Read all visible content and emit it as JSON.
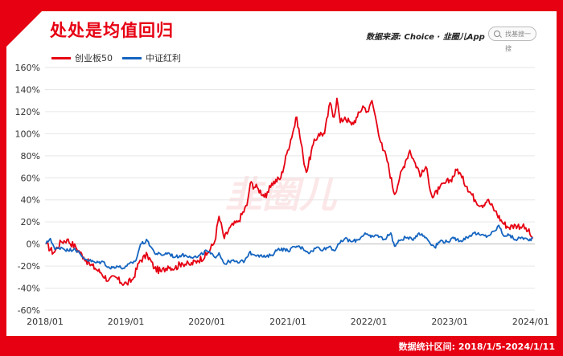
{
  "header": {
    "title": "处处是均值回归",
    "source": "数据来源: Choice · 韭圈儿App",
    "search_placeholder": "找基搜一搜"
  },
  "footer": {
    "date_range": "数据统计区间: 2018/1/5-2024/1/11"
  },
  "watermark": "韭圈儿",
  "colors": {
    "cyb": "#e60012",
    "zzhl": "#1565c0",
    "accent": "#e60012"
  },
  "chart_data": {
    "type": "line",
    "title": "处处是均值回归",
    "xlabel": "",
    "ylabel": "",
    "ylim": [
      -60,
      160
    ],
    "yticks": [
      -60,
      -40,
      -20,
      0,
      20,
      40,
      60,
      80,
      100,
      120,
      140,
      160
    ],
    "ytick_labels": [
      "-60%",
      "-40%",
      "-20%",
      "0%",
      "20%",
      "40%",
      "60%",
      "80%",
      "100%",
      "120%",
      "140%",
      "160%"
    ],
    "xlim": [
      "2018-01-01",
      "2024-01-20"
    ],
    "xtick_labels": [
      "2018/01",
      "2019/01",
      "2020/01",
      "2021/01",
      "2022/01",
      "2023/01",
      "2024/01"
    ],
    "xtick_values": [
      "2018-01-01",
      "2019-01-01",
      "2020-01-01",
      "2021-01-01",
      "2022-01-01",
      "2023-01-01",
      "2024-01-01"
    ],
    "grid": "horizontal",
    "legend": "top-left",
    "series": [
      {
        "name": "创业板50",
        "color": "#e60012",
        "points": [
          [
            "2018-01-05",
            0
          ],
          [
            "2018-02-08",
            -8
          ],
          [
            "2018-03-15",
            2
          ],
          [
            "2018-04-10",
            4
          ],
          [
            "2018-05-20",
            -3
          ],
          [
            "2018-06-25",
            -12
          ],
          [
            "2018-07-20",
            -18
          ],
          [
            "2018-08-15",
            -22
          ],
          [
            "2018-09-10",
            -26
          ],
          [
            "2018-10-15",
            -33
          ],
          [
            "2018-11-15",
            -30
          ],
          [
            "2018-12-10",
            -35
          ],
          [
            "2019-01-05",
            -36
          ],
          [
            "2019-02-01",
            -32
          ],
          [
            "2019-03-05",
            -15
          ],
          [
            "2019-04-08",
            -10
          ],
          [
            "2019-05-10",
            -22
          ],
          [
            "2019-06-10",
            -25
          ],
          [
            "2019-07-10",
            -20
          ],
          [
            "2019-08-10",
            -22
          ],
          [
            "2019-09-10",
            -17
          ],
          [
            "2019-10-15",
            -19
          ],
          [
            "2019-11-20",
            -15
          ],
          [
            "2019-12-31",
            -10
          ],
          [
            "2020-02-05",
            2
          ],
          [
            "2020-02-25",
            25
          ],
          [
            "2020-03-20",
            5
          ],
          [
            "2020-04-15",
            15
          ],
          [
            "2020-05-20",
            20
          ],
          [
            "2020-06-30",
            35
          ],
          [
            "2020-07-15",
            55
          ],
          [
            "2020-08-20",
            50
          ],
          [
            "2020-09-25",
            42
          ],
          [
            "2020-10-20",
            55
          ],
          [
            "2020-11-30",
            60
          ],
          [
            "2020-12-31",
            85
          ],
          [
            "2021-02-10",
            115
          ],
          [
            "2021-03-10",
            80
          ],
          [
            "2021-03-25",
            65
          ],
          [
            "2021-04-25",
            90
          ],
          [
            "2021-05-20",
            100
          ],
          [
            "2021-06-15",
            100
          ],
          [
            "2021-07-10",
            128
          ],
          [
            "2021-07-28",
            115
          ],
          [
            "2021-08-10",
            132
          ],
          [
            "2021-08-25",
            110
          ],
          [
            "2021-09-15",
            115
          ],
          [
            "2021-10-15",
            108
          ],
          [
            "2021-11-10",
            115
          ],
          [
            "2021-12-05",
            125
          ],
          [
            "2021-12-30",
            120
          ],
          [
            "2022-01-15",
            130
          ],
          [
            "2022-02-05",
            110
          ],
          [
            "2022-03-05",
            85
          ],
          [
            "2022-03-20",
            80
          ],
          [
            "2022-04-27",
            45
          ],
          [
            "2022-05-20",
            60
          ],
          [
            "2022-06-15",
            75
          ],
          [
            "2022-07-05",
            85
          ],
          [
            "2022-07-25",
            75
          ],
          [
            "2022-08-25",
            62
          ],
          [
            "2022-09-15",
            70
          ],
          [
            "2022-10-15",
            42
          ],
          [
            "2022-11-15",
            50
          ],
          [
            "2022-12-10",
            55
          ],
          [
            "2023-01-05",
            58
          ],
          [
            "2023-02-05",
            68
          ],
          [
            "2023-02-25",
            60
          ],
          [
            "2023-03-20",
            52
          ],
          [
            "2023-04-25",
            40
          ],
          [
            "2023-05-25",
            35
          ],
          [
            "2023-06-20",
            40
          ],
          [
            "2023-07-25",
            30
          ],
          [
            "2023-08-25",
            20
          ],
          [
            "2023-09-25",
            15
          ],
          [
            "2023-10-25",
            17
          ],
          [
            "2023-11-25",
            16
          ],
          [
            "2023-12-20",
            12
          ],
          [
            "2024-01-11",
            5
          ]
        ]
      },
      {
        "name": "中证红利",
        "color": "#1565c0",
        "points": [
          [
            "2018-01-05",
            0
          ],
          [
            "2018-01-25",
            5
          ],
          [
            "2018-02-15",
            -5
          ],
          [
            "2018-03-15",
            -3
          ],
          [
            "2018-04-15",
            -6
          ],
          [
            "2018-05-15",
            -4
          ],
          [
            "2018-06-20",
            -12
          ],
          [
            "2018-07-20",
            -15
          ],
          [
            "2018-08-20",
            -17
          ],
          [
            "2018-09-20",
            -16
          ],
          [
            "2018-10-20",
            -22
          ],
          [
            "2018-11-20",
            -20
          ],
          [
            "2018-12-20",
            -22
          ],
          [
            "2019-01-05",
            -20
          ],
          [
            "2019-02-15",
            -15
          ],
          [
            "2019-03-08",
            0
          ],
          [
            "2019-04-08",
            3
          ],
          [
            "2019-05-10",
            -8
          ],
          [
            "2019-06-10",
            -10
          ],
          [
            "2019-07-10",
            -8
          ],
          [
            "2019-08-10",
            -12
          ],
          [
            "2019-09-10",
            -10
          ],
          [
            "2019-10-15",
            -11
          ],
          [
            "2019-11-20",
            -12
          ],
          [
            "2019-12-31",
            -6
          ],
          [
            "2020-02-05",
            -12
          ],
          [
            "2020-02-25",
            -8
          ],
          [
            "2020-03-20",
            -18
          ],
          [
            "2020-04-20",
            -15
          ],
          [
            "2020-05-20",
            -17
          ],
          [
            "2020-06-20",
            -15
          ],
          [
            "2020-07-10",
            -8
          ],
          [
            "2020-08-20",
            -10
          ],
          [
            "2020-09-20",
            -12
          ],
          [
            "2020-10-20",
            -10
          ],
          [
            "2020-11-20",
            -4
          ],
          [
            "2020-12-31",
            -6
          ],
          [
            "2021-02-10",
            -2
          ],
          [
            "2021-03-10",
            -4
          ],
          [
            "2021-04-10",
            -8
          ],
          [
            "2021-05-10",
            -3
          ],
          [
            "2021-06-10",
            -5
          ],
          [
            "2021-07-10",
            -2
          ],
          [
            "2021-07-28",
            -6
          ],
          [
            "2021-08-20",
            0
          ],
          [
            "2021-09-15",
            5
          ],
          [
            "2021-10-15",
            2
          ],
          [
            "2021-11-15",
            4
          ],
          [
            "2021-12-15",
            10
          ],
          [
            "2022-01-10",
            6
          ],
          [
            "2022-02-10",
            8
          ],
          [
            "2022-03-10",
            4
          ],
          [
            "2022-04-10",
            10
          ],
          [
            "2022-04-27",
            -2
          ],
          [
            "2022-05-20",
            3
          ],
          [
            "2022-06-15",
            6
          ],
          [
            "2022-07-15",
            4
          ],
          [
            "2022-08-15",
            10
          ],
          [
            "2022-09-15",
            6
          ],
          [
            "2022-10-25",
            -3
          ],
          [
            "2022-11-20",
            3
          ],
          [
            "2022-12-20",
            2
          ],
          [
            "2023-01-20",
            5
          ],
          [
            "2023-02-20",
            3
          ],
          [
            "2023-03-20",
            6
          ],
          [
            "2023-04-20",
            10
          ],
          [
            "2023-05-20",
            8
          ],
          [
            "2023-06-20",
            7
          ],
          [
            "2023-07-25",
            12
          ],
          [
            "2023-08-10",
            17
          ],
          [
            "2023-08-30",
            8
          ],
          [
            "2023-09-25",
            8
          ],
          [
            "2023-10-25",
            4
          ],
          [
            "2023-11-25",
            6
          ],
          [
            "2023-12-25",
            3
          ],
          [
            "2024-01-11",
            6
          ]
        ]
      }
    ]
  }
}
